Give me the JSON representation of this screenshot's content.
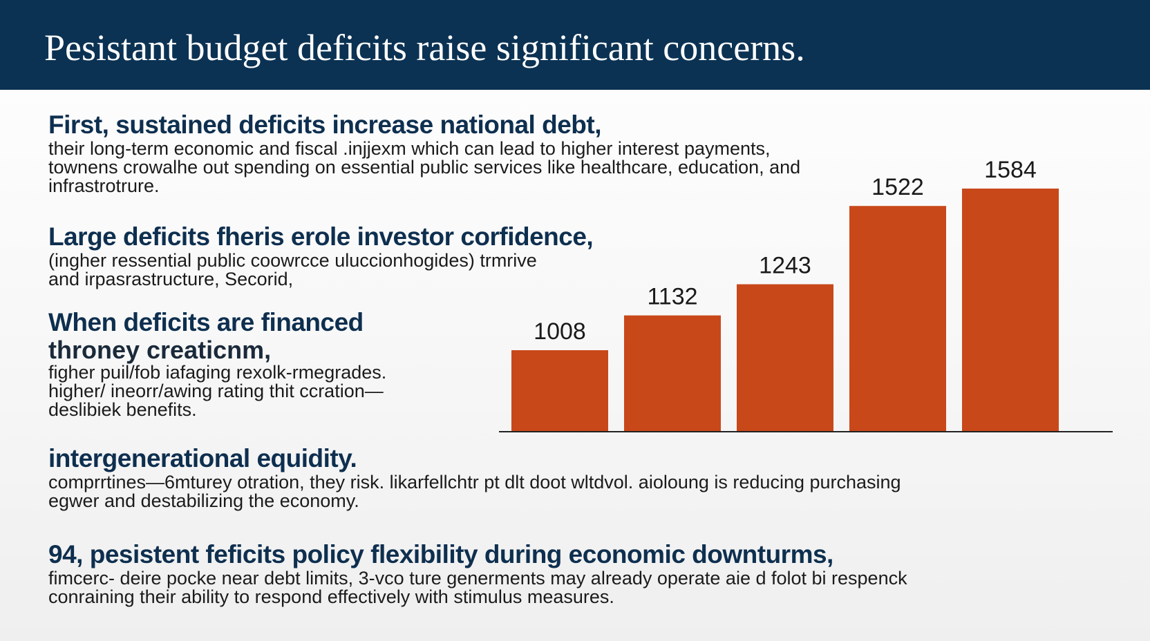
{
  "header": {
    "title": "Pesistant budget deficits raise significant concerns."
  },
  "blocks": [
    {
      "heading": "First, sustained deficits increase national debt,",
      "lines": [
        "their long-term economic and fiscal .injjexm which can lead to higher interest payments,",
        "townens crowalhe out spending on essential public services like healthcare, education, and",
        "infrastrotrure."
      ]
    },
    {
      "heading": "Large deficits fheris erole investor corfidence,",
      "lines": [
        "(ingher ressential public coowrcce uluccionhogides) trmrive",
        "and irpasrastructure,  Secorid,"
      ]
    },
    {
      "heading": "When deficits are financed",
      "subheading": "throney creaticnm,",
      "lines": [
        "figher puil/fob iafaging rexolk-rmegrades.",
        "higher/ ineorr/awing rating thit ccration—",
        "deslibiek benefits."
      ]
    },
    {
      "heading": "intergenerational equidity.",
      "lines": [
        "comprrtines—6mturey otration, they risk. likarfellchtr pt dlt doot wltdvol. aioloung is reducing purchasing",
        "egwer and destabilizing the economy."
      ]
    },
    {
      "heading": "94, pesistent feficits policy flexibility during economic downturms,",
      "lines": [
        "fimcerc- deire pocke near debt limits, 3-vco ture generments may already operate aie d folot bi respenck",
        "conraining their ability to respond effectively with stimulus measures."
      ]
    }
  ],
  "chart_data": {
    "type": "bar",
    "values": [
      1008,
      1132,
      1243,
      1522,
      1584
    ],
    "labels": [
      "1008",
      "1132",
      "1243",
      "1522",
      "1584"
    ],
    "bar_color": "#c8481a",
    "ylim": [
      0,
      1584
    ]
  }
}
